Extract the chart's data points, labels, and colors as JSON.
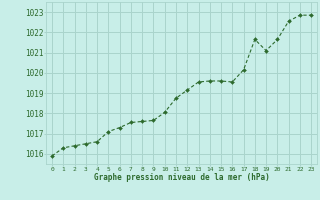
{
  "x": [
    0,
    1,
    2,
    3,
    4,
    5,
    6,
    7,
    8,
    9,
    10,
    11,
    12,
    13,
    14,
    15,
    16,
    17,
    18,
    19,
    20,
    21,
    22,
    23
  ],
  "y": [
    1015.9,
    1016.3,
    1016.4,
    1016.5,
    1016.6,
    1017.1,
    1017.3,
    1017.55,
    1017.6,
    1017.65,
    1018.05,
    1018.75,
    1019.15,
    1019.55,
    1019.6,
    1019.6,
    1019.55,
    1020.15,
    1021.65,
    1021.1,
    1021.65,
    1022.55,
    1022.85,
    1022.85
  ],
  "line_color": "#2d6a2d",
  "marker_color": "#2d6a2d",
  "background_color": "#c8eee8",
  "grid_color": "#aad4cc",
  "axis_label_color": "#2d6a2d",
  "tick_label_color": "#2d6a2d",
  "xlabel": "Graphe pression niveau de la mer (hPa)",
  "ylim_min": 1015.5,
  "ylim_max": 1023.5,
  "ytick_min": 1016,
  "ytick_max": 1023,
  "xlim_min": -0.5,
  "xlim_max": 23.5
}
